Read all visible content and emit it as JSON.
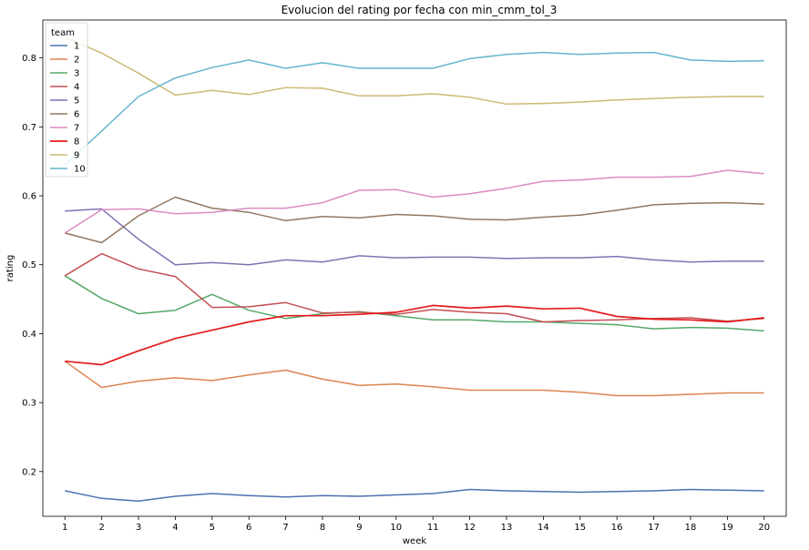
{
  "chart_data": {
    "type": "line",
    "title": "Evolucion del rating por fecha con min_cmm_tol_3",
    "xlabel": "week",
    "ylabel": "rating",
    "x": [
      1,
      2,
      3,
      4,
      5,
      6,
      7,
      8,
      9,
      10,
      11,
      12,
      13,
      14,
      15,
      16,
      17,
      18,
      19,
      20
    ],
    "xlim": [
      0.4,
      20.6
    ],
    "ylim": [
      0.135,
      0.855
    ],
    "yticks": [
      0.2,
      0.3,
      0.4,
      0.5,
      0.6,
      0.7,
      0.8
    ],
    "ytick_labels": [
      "0.2",
      "0.3",
      "0.4",
      "0.5",
      "0.6",
      "0.7",
      "0.8"
    ],
    "xtick_labels": [
      "1",
      "2",
      "3",
      "4",
      "5",
      "6",
      "7",
      "8",
      "9",
      "10",
      "11",
      "12",
      "13",
      "14",
      "15",
      "16",
      "17",
      "18",
      "19",
      "20"
    ],
    "legend_title": "team",
    "legend_position": "top-left",
    "grid": false,
    "series": [
      {
        "name": "1",
        "color": "#4c72b0",
        "width": 1.5,
        "values": [
          0.172,
          0.161,
          0.157,
          0.164,
          0.168,
          0.165,
          0.163,
          0.165,
          0.164,
          0.166,
          0.168,
          0.174,
          0.172,
          0.171,
          0.17,
          0.171,
          0.172,
          0.174,
          0.173,
          0.172
        ]
      },
      {
        "name": "2",
        "color": "#dd8452",
        "width": 1.5,
        "values": [
          0.36,
          0.322,
          0.331,
          0.336,
          0.332,
          0.34,
          0.347,
          0.334,
          0.325,
          0.327,
          0.323,
          0.318,
          0.318,
          0.318,
          0.315,
          0.31,
          0.31,
          0.312,
          0.314,
          0.314
        ]
      },
      {
        "name": "3",
        "color": "#55a868",
        "width": 1.5,
        "values": [
          0.484,
          0.451,
          0.429,
          0.434,
          0.457,
          0.434,
          0.422,
          0.429,
          0.432,
          0.426,
          0.42,
          0.42,
          0.417,
          0.417,
          0.415,
          0.413,
          0.407,
          0.409,
          0.408,
          0.404
        ]
      },
      {
        "name": "4",
        "color": "#c44e52",
        "width": 1.5,
        "values": [
          0.484,
          0.516,
          0.494,
          0.483,
          0.438,
          0.439,
          0.445,
          0.43,
          0.431,
          0.428,
          0.435,
          0.431,
          0.429,
          0.417,
          0.419,
          0.42,
          0.422,
          0.423,
          0.418,
          0.422
        ]
      },
      {
        "name": "5",
        "color": "#8172b3",
        "width": 1.5,
        "values": [
          0.578,
          0.581,
          0.537,
          0.5,
          0.503,
          0.5,
          0.507,
          0.504,
          0.513,
          0.51,
          0.511,
          0.511,
          0.509,
          0.51,
          0.51,
          0.512,
          0.507,
          0.504,
          0.505,
          0.505
        ]
      },
      {
        "name": "6",
        "color": "#937860",
        "width": 1.5,
        "values": [
          0.546,
          0.532,
          0.571,
          0.598,
          0.582,
          0.576,
          0.564,
          0.57,
          0.568,
          0.573,
          0.571,
          0.566,
          0.565,
          0.569,
          0.572,
          0.579,
          0.587,
          0.589,
          0.59,
          0.588
        ]
      },
      {
        "name": "7",
        "color": "#da8bc3",
        "width": 1.5,
        "values": [
          0.546,
          0.58,
          0.581,
          0.574,
          0.576,
          0.582,
          0.582,
          0.59,
          0.608,
          0.609,
          0.598,
          0.603,
          0.611,
          0.621,
          0.623,
          0.627,
          0.627,
          0.628,
          0.637,
          0.632
        ]
      },
      {
        "name": "8",
        "color": "#e41a1c",
        "width": 1.7,
        "values": [
          0.36,
          0.355,
          0.375,
          0.393,
          0.405,
          0.417,
          0.426,
          0.426,
          0.428,
          0.431,
          0.441,
          0.437,
          0.44,
          0.436,
          0.437,
          0.425,
          0.421,
          0.42,
          0.417,
          0.423
        ]
      },
      {
        "name": "9",
        "color": "#ccb974",
        "width": 1.5,
        "values": [
          0.83,
          0.807,
          0.778,
          0.746,
          0.753,
          0.747,
          0.757,
          0.756,
          0.745,
          0.745,
          0.748,
          0.743,
          0.733,
          0.734,
          0.736,
          0.739,
          0.741,
          0.743,
          0.744,
          0.744
        ]
      },
      {
        "name": "10",
        "color": "#64b5cd",
        "width": 1.5,
        "values": [
          0.645,
          0.694,
          0.744,
          0.771,
          0.786,
          0.797,
          0.785,
          0.793,
          0.785,
          0.785,
          0.785,
          0.799,
          0.805,
          0.808,
          0.805,
          0.807,
          0.808,
          0.797,
          0.795,
          0.796
        ]
      }
    ]
  }
}
